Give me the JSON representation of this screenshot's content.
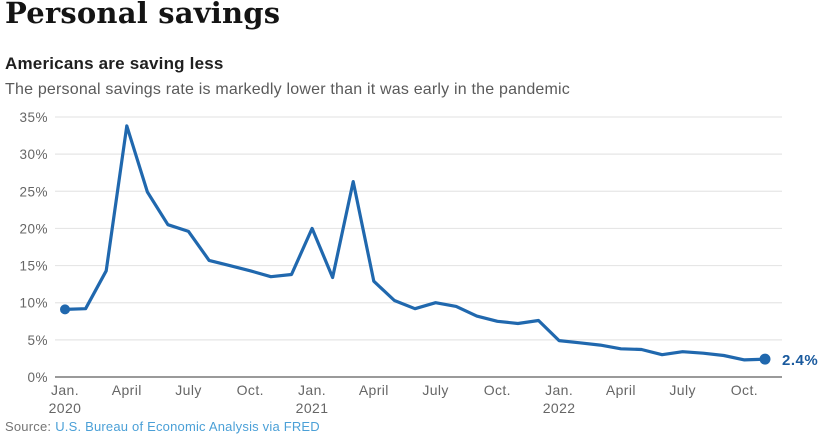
{
  "page": {
    "title": "Personal savings",
    "subtitle": "Americans are saving less",
    "description": "The personal savings rate is markedly lower than it was early in the pandemic"
  },
  "source": {
    "prefix": "Source:",
    "link_text": "U.S. Bureau of Economic Analysis via FRED"
  },
  "colors": {
    "line": "#2068ae",
    "marker": "#2068ae",
    "end_label": "#1a5a9e",
    "link": "#4ba0d7",
    "grid": "#e6e6e6",
    "axis": "#9a9a9a",
    "tick_text": "#666666"
  },
  "chart_data": {
    "type": "line",
    "title": "Americans are saving less",
    "subtitle": "The personal savings rate is markedly lower than it was early in the pandemic",
    "xlabel": "",
    "ylabel": "",
    "ylim": [
      0,
      35
    ],
    "grid": true,
    "legend": false,
    "y_ticks": [
      0,
      5,
      10,
      15,
      20,
      25,
      30,
      35
    ],
    "y_tick_suffix": "%",
    "x": [
      "Jan. 2020",
      "Feb. 2020",
      "March 2020",
      "April 2020",
      "May 2020",
      "June 2020",
      "July 2020",
      "Aug. 2020",
      "Sept. 2020",
      "Oct. 2020",
      "Nov. 2020",
      "Dec. 2020",
      "Jan. 2021",
      "Feb. 2021",
      "March 2021",
      "April 2021",
      "May 2021",
      "June 2021",
      "July 2021",
      "Aug. 2021",
      "Sept. 2021",
      "Oct. 2021",
      "Nov. 2021",
      "Dec. 2021",
      "Jan. 2022",
      "Feb. 2022",
      "March 2022",
      "April 2022",
      "May 2022",
      "June 2022",
      "July 2022",
      "Aug. 2022",
      "Sept. 2022",
      "Oct. 2022",
      "Nov. 2022"
    ],
    "values": [
      9.1,
      9.2,
      14.3,
      33.8,
      24.9,
      20.5,
      19.6,
      15.7,
      15.0,
      14.3,
      13.5,
      13.8,
      20.0,
      13.4,
      26.3,
      12.9,
      10.3,
      9.2,
      10.0,
      9.5,
      8.2,
      7.5,
      7.2,
      7.6,
      4.9,
      4.6,
      4.3,
      3.8,
      3.7,
      3.0,
      3.4,
      3.2,
      2.9,
      2.3,
      2.4
    ],
    "x_ticks": [
      {
        "index": 0,
        "label": "Jan.",
        "year": "2020"
      },
      {
        "index": 3,
        "label": "April"
      },
      {
        "index": 6,
        "label": "July"
      },
      {
        "index": 9,
        "label": "Oct."
      },
      {
        "index": 12,
        "label": "Jan.",
        "year": "2021"
      },
      {
        "index": 15,
        "label": "April"
      },
      {
        "index": 18,
        "label": "July"
      },
      {
        "index": 21,
        "label": "Oct."
      },
      {
        "index": 24,
        "label": "Jan.",
        "year": "2022"
      },
      {
        "index": 27,
        "label": "April"
      },
      {
        "index": 30,
        "label": "July"
      },
      {
        "index": 33,
        "label": "Oct."
      }
    ],
    "end_label": "2.4%"
  }
}
